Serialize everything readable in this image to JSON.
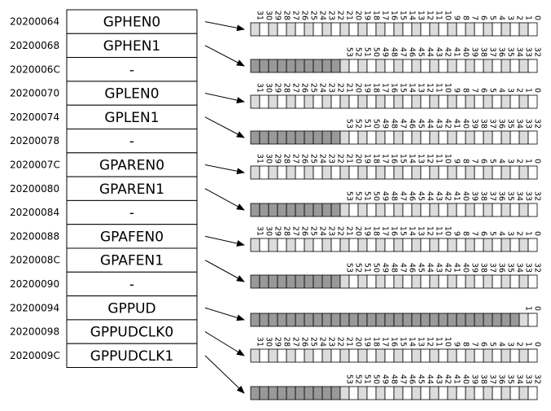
{
  "registers": [
    {
      "address": "20200064",
      "name": "GPHEN0",
      "bits": "lower"
    },
    {
      "address": "20200068",
      "name": "GPHEN1",
      "bits": "upper"
    },
    {
      "address": "2020006C",
      "name": "-",
      "bits": "none"
    },
    {
      "address": "20200070",
      "name": "GPLEN0",
      "bits": "lower"
    },
    {
      "address": "20200074",
      "name": "GPLEN1",
      "bits": "upper"
    },
    {
      "address": "20200078",
      "name": "-",
      "bits": "none"
    },
    {
      "address": "2020007C",
      "name": "GPAREN0",
      "bits": "lower"
    },
    {
      "address": "20200080",
      "name": "GPAREN1",
      "bits": "upper"
    },
    {
      "address": "20200084",
      "name": "-",
      "bits": "none"
    },
    {
      "address": "20200088",
      "name": "GPAFEN0",
      "bits": "lower"
    },
    {
      "address": "2020008C",
      "name": "GPAFEN1",
      "bits": "upper"
    },
    {
      "address": "20200090",
      "name": "-",
      "bits": "none"
    },
    {
      "address": "20200094",
      "name": "GPPUD",
      "bits": "pud"
    },
    {
      "address": "20200098",
      "name": "GPPUDCLK0",
      "bits": "lower"
    },
    {
      "address": "2020009C",
      "name": "GPPUDCLK1",
      "bits": "upper"
    }
  ],
  "bitfields": [
    {
      "register": "GPHEN0",
      "labels": [
        "31",
        "30",
        "29",
        "28",
        "27",
        "26",
        "25",
        "24",
        "23",
        "22",
        "21",
        "20",
        "19",
        "18",
        "17",
        "16",
        "15",
        "14",
        "13",
        "12",
        "11",
        "10",
        "9",
        "8",
        "7",
        "6",
        "5",
        "4",
        "3",
        "2",
        "1",
        "0"
      ],
      "reserved_cells": 0
    },
    {
      "register": "GPHEN1",
      "labels": [
        "",
        "",
        "",
        "",
        "",
        "",
        "",
        "",
        "",
        "",
        "53",
        "52",
        "51",
        "50",
        "49",
        "48",
        "47",
        "46",
        "45",
        "44",
        "43",
        "42",
        "41",
        "40",
        "39",
        "38",
        "37",
        "36",
        "35",
        "34",
        "33",
        "32"
      ],
      "reserved_cells": 10
    },
    {
      "register": "GPLEN0",
      "labels": [
        "31",
        "30",
        "29",
        "28",
        "27",
        "26",
        "25",
        "24",
        "23",
        "22",
        "21",
        "20",
        "19",
        "18",
        "17",
        "16",
        "15",
        "14",
        "13",
        "12",
        "11",
        "10",
        "9",
        "8",
        "7",
        "6",
        "5",
        "4",
        "3",
        "2",
        "1",
        "0"
      ],
      "reserved_cells": 0
    },
    {
      "register": "GPLEN1",
      "labels": [
        "",
        "",
        "",
        "",
        "",
        "",
        "",
        "",
        "",
        "",
        "53",
        "52",
        "51",
        "50",
        "49",
        "48",
        "47",
        "46",
        "45",
        "44",
        "43",
        "42",
        "41",
        "40",
        "39",
        "38",
        "37",
        "36",
        "35",
        "34",
        "33",
        "32"
      ],
      "reserved_cells": 10
    },
    {
      "register": "GPAREN0",
      "labels": [
        "31",
        "30",
        "29",
        "28",
        "27",
        "26",
        "25",
        "24",
        "23",
        "22",
        "21",
        "20",
        "19",
        "18",
        "17",
        "16",
        "15",
        "14",
        "13",
        "12",
        "11",
        "10",
        "9",
        "8",
        "7",
        "6",
        "5",
        "4",
        "3",
        "2",
        "1",
        "0"
      ],
      "reserved_cells": 0
    },
    {
      "register": "GPAREN1",
      "labels": [
        "",
        "",
        "",
        "",
        "",
        "",
        "",
        "",
        "",
        "",
        "53",
        "52",
        "51",
        "50",
        "49",
        "48",
        "47",
        "46",
        "45",
        "44",
        "43",
        "42",
        "41",
        "40",
        "39",
        "38",
        "37",
        "36",
        "35",
        "34",
        "33",
        "32"
      ],
      "reserved_cells": 10
    },
    {
      "register": "GPAFEN0",
      "labels": [
        "31",
        "30",
        "29",
        "28",
        "27",
        "26",
        "25",
        "24",
        "23",
        "22",
        "21",
        "20",
        "19",
        "18",
        "17",
        "16",
        "15",
        "14",
        "13",
        "12",
        "11",
        "10",
        "9",
        "8",
        "7",
        "6",
        "5",
        "4",
        "3",
        "2",
        "1",
        "0"
      ],
      "reserved_cells": 0
    },
    {
      "register": "GPAFEN1",
      "labels": [
        "",
        "",
        "",
        "",
        "",
        "",
        "",
        "",
        "",
        "",
        "53",
        "52",
        "51",
        "50",
        "49",
        "48",
        "47",
        "46",
        "45",
        "44",
        "43",
        "42",
        "41",
        "40",
        "39",
        "38",
        "37",
        "36",
        "35",
        "34",
        "33",
        "32"
      ],
      "reserved_cells": 10
    },
    {
      "register": "GPPUD",
      "labels": [
        "",
        "",
        "",
        "",
        "",
        "",
        "",
        "",
        "",
        "",
        "",
        "",
        "",
        "",
        "",
        "",
        "",
        "",
        "",
        "",
        "",
        "",
        "",
        "",
        "",
        "",
        "",
        "",
        "",
        "",
        "1",
        "0"
      ],
      "reserved_cells": 30
    },
    {
      "register": "GPPUDCLK0",
      "labels": [
        "31",
        "30",
        "29",
        "28",
        "27",
        "26",
        "25",
        "24",
        "23",
        "22",
        "21",
        "20",
        "19",
        "18",
        "17",
        "16",
        "15",
        "14",
        "13",
        "12",
        "11",
        "10",
        "9",
        "8",
        "7",
        "6",
        "5",
        "4",
        "3",
        "2",
        "1",
        "0"
      ],
      "reserved_cells": 0
    },
    {
      "register": "GPPUDCLK1",
      "labels": [
        "",
        "",
        "",
        "",
        "",
        "",
        "",
        "",
        "",
        "",
        "53",
        "52",
        "51",
        "50",
        "49",
        "48",
        "47",
        "46",
        "45",
        "44",
        "43",
        "42",
        "41",
        "40",
        "39",
        "38",
        "37",
        "36",
        "35",
        "34",
        "33",
        "32"
      ],
      "reserved_cells": 10
    }
  ],
  "colors": {
    "reserved": "#999999",
    "cell_light": "#dcdcdc",
    "cell_white": "#ffffff",
    "stroke": "#000000"
  }
}
